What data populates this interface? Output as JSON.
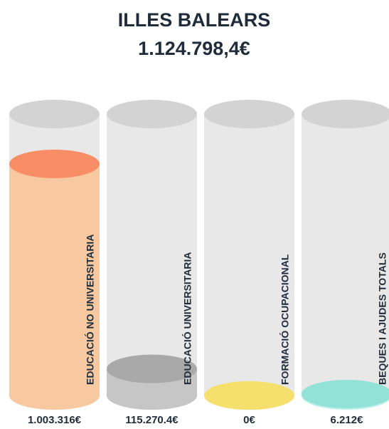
{
  "chart_data": {
    "type": "cylinder",
    "title": "ILLES BALEARS",
    "subtitle": "1.124.798,4€",
    "categories": [
      "EDUCACIÓ NO UNIVERSITARIA",
      "EDUCACIÓ UNIVERSITARIA",
      "FORMACIÓ OCUPACIONAL",
      "BEQUES I AJUDES TOTALS"
    ],
    "values": [
      1003316,
      115270.4,
      0,
      6212
    ],
    "value_labels": [
      "1.003.316€",
      "115.270.4€",
      "0€",
      "6.212€"
    ],
    "colors": [
      "#f8c8a0",
      "#c6c6c6",
      "#f5e06e",
      "#bff1ea"
    ],
    "top_colors": [
      "#f98d66",
      "#a9a9a9",
      "#f5e06e",
      "#93e2d8"
    ]
  }
}
